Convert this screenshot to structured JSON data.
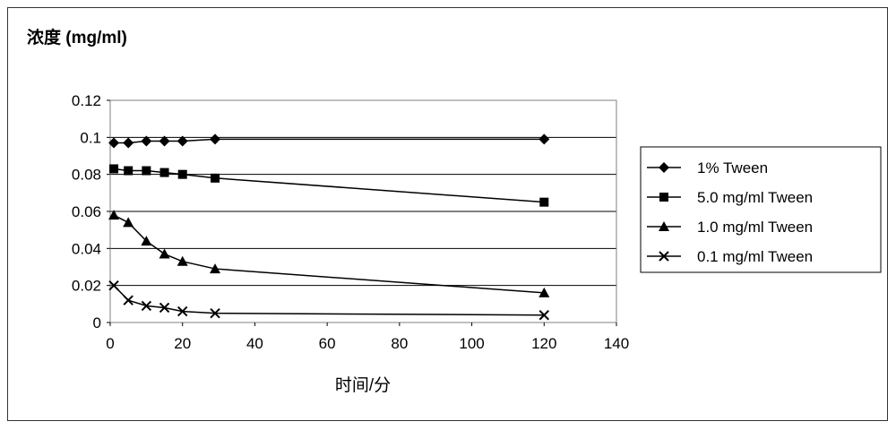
{
  "chart_data": {
    "type": "line",
    "title": "",
    "ylabel": "浓度 (mg/ml)",
    "xlabel": "时间/分",
    "xlim": [
      0,
      140
    ],
    "ylim": [
      0,
      0.12
    ],
    "x_ticks": [
      "0",
      "20",
      "40",
      "60",
      "80",
      "100",
      "120",
      "140"
    ],
    "y_ticks": [
      "0",
      "0.02",
      "0.04",
      "0.06",
      "0.08",
      "0.1",
      "0.12"
    ],
    "grid": "horizontal",
    "legend_position": "right",
    "series": [
      {
        "name": "1% Tween",
        "marker": "diamond",
        "x": [
          1,
          5,
          10,
          15,
          20,
          29,
          120
        ],
        "y": [
          0.097,
          0.097,
          0.098,
          0.098,
          0.098,
          0.099,
          0.099
        ]
      },
      {
        "name": "5.0 mg/ml Tween",
        "marker": "square",
        "x": [
          1,
          5,
          10,
          15,
          20,
          29,
          120
        ],
        "y": [
          0.083,
          0.082,
          0.082,
          0.081,
          0.08,
          0.078,
          0.065
        ]
      },
      {
        "name": "1.0 mg/ml Tween",
        "marker": "triangle",
        "x": [
          1,
          5,
          10,
          15,
          20,
          29,
          120
        ],
        "y": [
          0.058,
          0.054,
          0.044,
          0.037,
          0.033,
          0.029,
          0.016
        ]
      },
      {
        "name": "0.1 mg/ml Tween",
        "marker": "x",
        "x": [
          1,
          5,
          10,
          15,
          20,
          29,
          120
        ],
        "y": [
          0.02,
          0.012,
          0.009,
          0.008,
          0.006,
          0.005,
          0.004
        ]
      }
    ]
  }
}
